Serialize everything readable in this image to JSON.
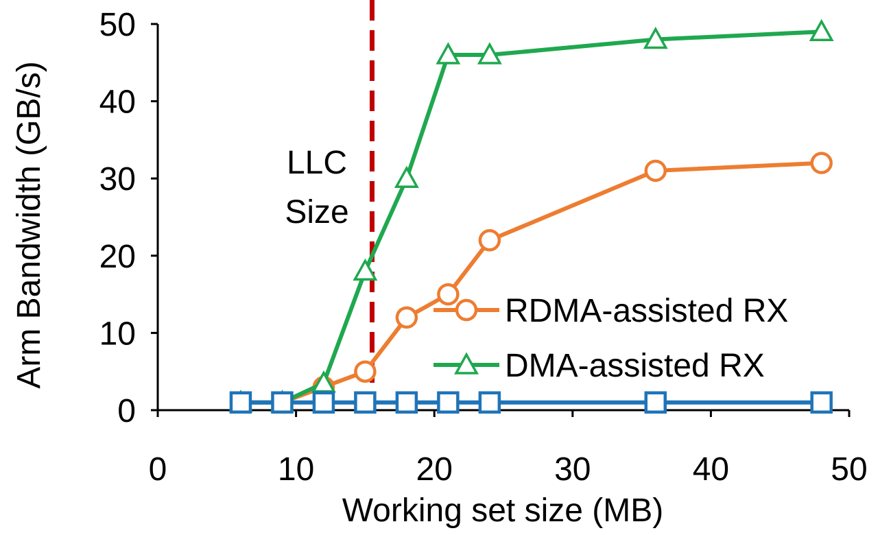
{
  "chart_data": {
    "type": "line",
    "title": "",
    "xlabel": "Working set size (MB)",
    "ylabel": "Arm Bandwidth (GB/s)",
    "xlim": [
      0,
      50
    ],
    "ylim": [
      0,
      50
    ],
    "xticks": [
      0,
      10,
      20,
      30,
      40,
      50
    ],
    "yticks": [
      0,
      10,
      20,
      30,
      40,
      50
    ],
    "grid": false,
    "legend_position": "bottom-right",
    "series": [
      {
        "name": "RDMA-assisted RX",
        "color": "#ED7D31",
        "marker": "circle",
        "x": [
          6,
          9,
          12,
          15,
          18,
          21,
          24,
          36,
          48
        ],
        "y": [
          1,
          1,
          3,
          5,
          12,
          15,
          22,
          31,
          32
        ]
      },
      {
        "name": "DMA-assisted RX",
        "color": "#1FA84F",
        "marker": "triangle",
        "x": [
          6,
          9,
          12,
          15,
          18,
          21,
          24,
          36,
          48
        ],
        "y": [
          1,
          1,
          3.5,
          18,
          30,
          46,
          46,
          48,
          49
        ]
      },
      {
        "name": "",
        "color": "#1F74B8",
        "marker": "square",
        "x": [
          6,
          9,
          12,
          15,
          18,
          21,
          24,
          36,
          48
        ],
        "y": [
          1,
          1,
          1,
          1,
          1,
          1,
          1,
          1,
          1
        ]
      }
    ],
    "annotations": [
      {
        "type": "vline",
        "x": 15.5,
        "color": "#C00000",
        "style": "dashed",
        "label": [
          "LLC",
          "Size"
        ]
      }
    ]
  }
}
